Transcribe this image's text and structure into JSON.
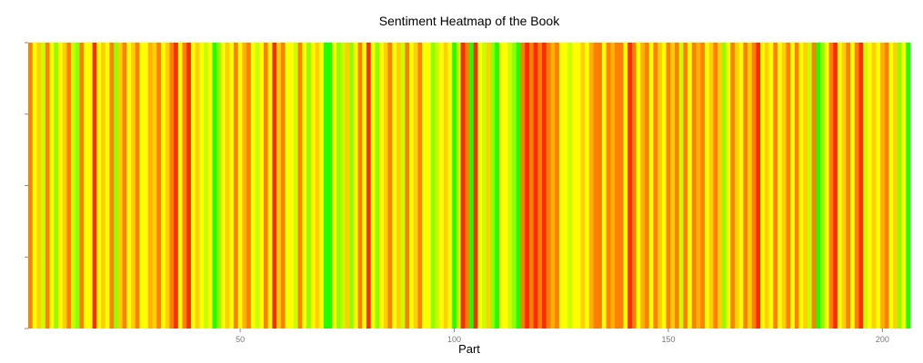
{
  "chart_data": {
    "type": "heatmap",
    "title": "Sentiment Heatmap of the Book",
    "xlabel": "Part",
    "ylabel": "",
    "xlim": [
      0.5,
      206.5
    ],
    "x_ticks": [
      50,
      100,
      150,
      200
    ],
    "grid": false,
    "legend": "none",
    "color_scale": {
      "red": "#ff2a00",
      "orange": "#ff7f00",
      "amber": "#ffb000",
      "gold": "#ffd000",
      "yellow": "#ffff00",
      "yellow_green": "#c8ff00",
      "light_green": "#8cff00",
      "green": "#1eff00"
    },
    "parts": [
      "orange",
      "yellow",
      "gold",
      "yellow_green",
      "orange",
      "yellow",
      "light_green",
      "yellow",
      "gold",
      "orange",
      "yellow_green",
      "light_green",
      "orange",
      "yellow",
      "yellow",
      "red",
      "yellow",
      "gold",
      "yellow",
      "orange",
      "light_green",
      "gold",
      "orange",
      "yellow",
      "gold",
      "orange",
      "yellow",
      "yellow",
      "amber",
      "gold",
      "orange",
      "yellow",
      "gold",
      "orange",
      "red",
      "yellow",
      "orange",
      "red",
      "yellow",
      "gold",
      "yellow",
      "yellow_green",
      "yellow",
      "green",
      "light_green",
      "yellow",
      "gold",
      "yellow",
      "orange",
      "yellow",
      "amber",
      "orange",
      "yellow",
      "yellow_green",
      "yellow",
      "orange",
      "yellow",
      "red",
      "gold",
      "orange",
      "yellow",
      "yellow",
      "yellow_green",
      "orange",
      "yellow",
      "light_green",
      "yellow",
      "gold",
      "yellow",
      "green",
      "green",
      "yellow",
      "light_green",
      "yellow_green",
      "gold",
      "light_green",
      "yellow",
      "orange",
      "yellow",
      "red",
      "yellow",
      "light_green",
      "yellow",
      "gold",
      "orange",
      "yellow",
      "gold",
      "yellow_green",
      "orange",
      "yellow",
      "gold",
      "orange",
      "yellow",
      "yellow",
      "light_green",
      "yellow_green",
      "yellow",
      "gold",
      "yellow",
      "green",
      "yellow_green",
      "red",
      "orange",
      "green",
      "red",
      "yellow",
      "yellow_green",
      "gold",
      "light_green",
      "green",
      "yellow",
      "yellow",
      "yellow_green",
      "light_green",
      "green",
      "orange",
      "red",
      "orange",
      "red",
      "orange",
      "red",
      "orange",
      "amber",
      "orange",
      "yellow",
      "yellow",
      "yellow_green",
      "yellow",
      "yellow",
      "gold",
      "yellow",
      "amber",
      "orange",
      "orange",
      "yellow",
      "orange",
      "amber",
      "orange",
      "orange",
      "yellow",
      "red",
      "orange",
      "yellow",
      "amber",
      "orange",
      "yellow",
      "orange",
      "gold",
      "yellow",
      "orange",
      "gold",
      "orange",
      "yellow_green",
      "orange",
      "yellow",
      "orange",
      "amber",
      "orange",
      "yellow",
      "gold",
      "orange",
      "gold",
      "light_green",
      "yellow",
      "orange",
      "gold",
      "yellow",
      "orange",
      "gold",
      "orange",
      "red",
      "yellow",
      "gold",
      "yellow",
      "orange",
      "yellow",
      "gold",
      "orange",
      "yellow",
      "orange",
      "yellow",
      "gold",
      "yellow_green",
      "orange",
      "green",
      "light_green",
      "yellow",
      "orange",
      "red",
      "yellow",
      "gold",
      "orange",
      "yellow",
      "orange",
      "red",
      "yellow_green",
      "yellow",
      "gold",
      "yellow",
      "amber",
      "orange",
      "yellow",
      "gold",
      "light_green",
      "yellow",
      "green"
    ]
  }
}
